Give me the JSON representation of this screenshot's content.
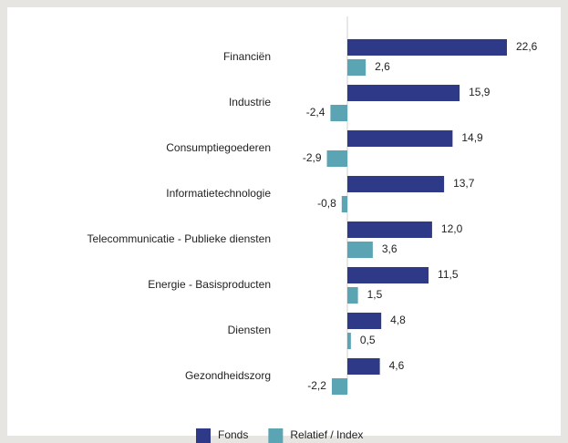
{
  "chart_data": {
    "type": "hbar",
    "categories": [
      "Financiën",
      "Industrie",
      "Consumptiegoederen",
      "Informatietechnologie",
      "Telecommunicatie - Publieke diensten",
      "Energie - Basisproducten",
      "Diensten",
      "Gezondheidszorg"
    ],
    "series": [
      {
        "name": "Fonds",
        "color": "#2e3a87",
        "values": [
          22.6,
          15.9,
          14.9,
          13.7,
          12.0,
          11.5,
          4.8,
          4.6
        ],
        "value_labels": [
          "22,6",
          "15,9",
          "14,9",
          "13,7",
          "12,0",
          "11,5",
          "4,8",
          "4,6"
        ]
      },
      {
        "name": "Relatief / Index",
        "color": "#5ba4b4",
        "values": [
          2.6,
          -2.4,
          -2.9,
          -0.8,
          3.6,
          1.5,
          0.5,
          -2.2
        ],
        "value_labels": [
          "2,6",
          "-2,4",
          "-2,9",
          "-0,8",
          "3,6",
          "1,5",
          "0,5",
          "-2,2"
        ]
      }
    ],
    "legend": "bottom"
  }
}
